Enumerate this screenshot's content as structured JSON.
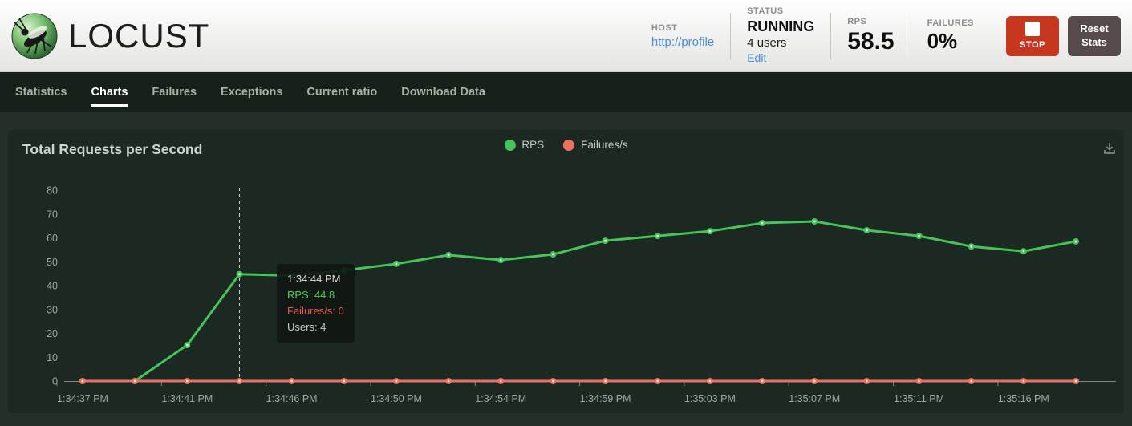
{
  "header": {
    "brand": "LOCUST",
    "host": {
      "label": "HOST",
      "value": "http://profile"
    },
    "status": {
      "label": "STATUS",
      "value": "RUNNING",
      "users": "4 users",
      "edit": "Edit"
    },
    "rps": {
      "label": "RPS",
      "value": "58.5"
    },
    "failures": {
      "label": "FAILURES",
      "value": "0%"
    },
    "stop_button": "STOP",
    "reset_button": "Reset Stats"
  },
  "nav": {
    "tabs": [
      {
        "label": "Statistics",
        "active": false
      },
      {
        "label": "Charts",
        "active": true
      },
      {
        "label": "Failures",
        "active": false
      },
      {
        "label": "Exceptions",
        "active": false
      },
      {
        "label": "Current ratio",
        "active": false
      },
      {
        "label": "Download Data",
        "active": false
      }
    ]
  },
  "chart": {
    "title": "Total Requests per Second",
    "legend": [
      {
        "name": "RPS",
        "color": "#46c35a"
      },
      {
        "name": "Failures/s",
        "color": "#ee6e5f"
      }
    ],
    "tooltip": {
      "time": "1:34:44 PM",
      "rps_line": "RPS: 44.8",
      "failures_line": "Failures/s: 0",
      "users_line": "Users: 4"
    }
  },
  "chart_data": {
    "type": "line",
    "title": "Total Requests per Second",
    "x_tick_labels": [
      "1:34:37 PM",
      "1:34:41 PM",
      "1:34:46 PM",
      "1:34:50 PM",
      "1:34:54 PM",
      "1:34:59 PM",
      "1:35:03 PM",
      "1:35:07 PM",
      "1:35:11 PM",
      "1:35:16 PM"
    ],
    "x_tick_indices": [
      0,
      2,
      4,
      6,
      8,
      10,
      12,
      14,
      16,
      18
    ],
    "series": [
      {
        "name": "RPS",
        "color": "#46c35a",
        "values": [
          0,
          0,
          15.1,
          44.8,
          44.2,
          46.4,
          49.1,
          52.8,
          50.7,
          53.1,
          58.8,
          60.8,
          62.8,
          66.2,
          66.9,
          63.2,
          60.8,
          56.4,
          54.4,
          58.5
        ]
      },
      {
        "name": "Failures/s",
        "color": "#ee6e5f",
        "values": [
          0,
          0,
          0,
          0,
          0,
          0,
          0,
          0,
          0,
          0,
          0,
          0,
          0,
          0,
          0,
          0,
          0,
          0,
          0,
          0
        ]
      }
    ],
    "ylim": [
      0,
      80
    ],
    "y_ticks": [
      0,
      10,
      20,
      30,
      40,
      50,
      60,
      70,
      80
    ],
    "grid": false,
    "legend_position": "top-center",
    "highlight_index": 3
  }
}
